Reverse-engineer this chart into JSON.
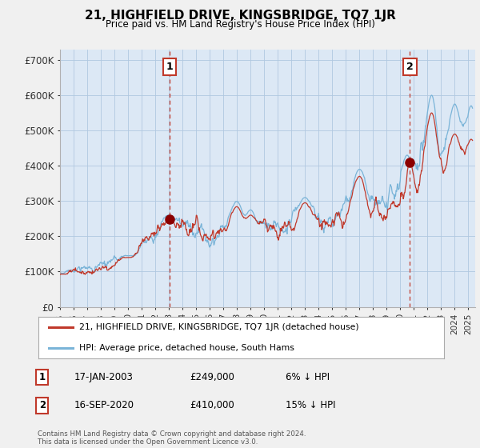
{
  "title": "21, HIGHFIELD DRIVE, KINGSBRIDGE, TQ7 1JR",
  "subtitle": "Price paid vs. HM Land Registry's House Price Index (HPI)",
  "ylabel_ticks": [
    "£0",
    "£100K",
    "£200K",
    "£300K",
    "£400K",
    "£500K",
    "£600K",
    "£700K"
  ],
  "ytick_values": [
    0,
    100000,
    200000,
    300000,
    400000,
    500000,
    600000,
    700000
  ],
  "ylim": [
    0,
    730000
  ],
  "xlim_start": 1995.0,
  "xlim_end": 2025.5,
  "hpi_color": "#7ab4d8",
  "price_color": "#c0392b",
  "transaction1_date": 2003.04,
  "transaction1_price": 249000,
  "transaction1_label": "1",
  "transaction2_date": 2020.71,
  "transaction2_price": 410000,
  "transaction2_label": "2",
  "legend_line1": "21, HIGHFIELD DRIVE, KINGSBRIDGE, TQ7 1JR (detached house)",
  "legend_line2": "HPI: Average price, detached house, South Hams",
  "table_row1": [
    "1",
    "17-JAN-2003",
    "£249,000",
    "6% ↓ HPI"
  ],
  "table_row2": [
    "2",
    "16-SEP-2020",
    "£410,000",
    "15% ↓ HPI"
  ],
  "footnote": "Contains HM Land Registry data © Crown copyright and database right 2024.\nThis data is licensed under the Open Government Licence v3.0.",
  "background_color": "#f0f0f0",
  "plot_bg_color": "#dce8f5"
}
